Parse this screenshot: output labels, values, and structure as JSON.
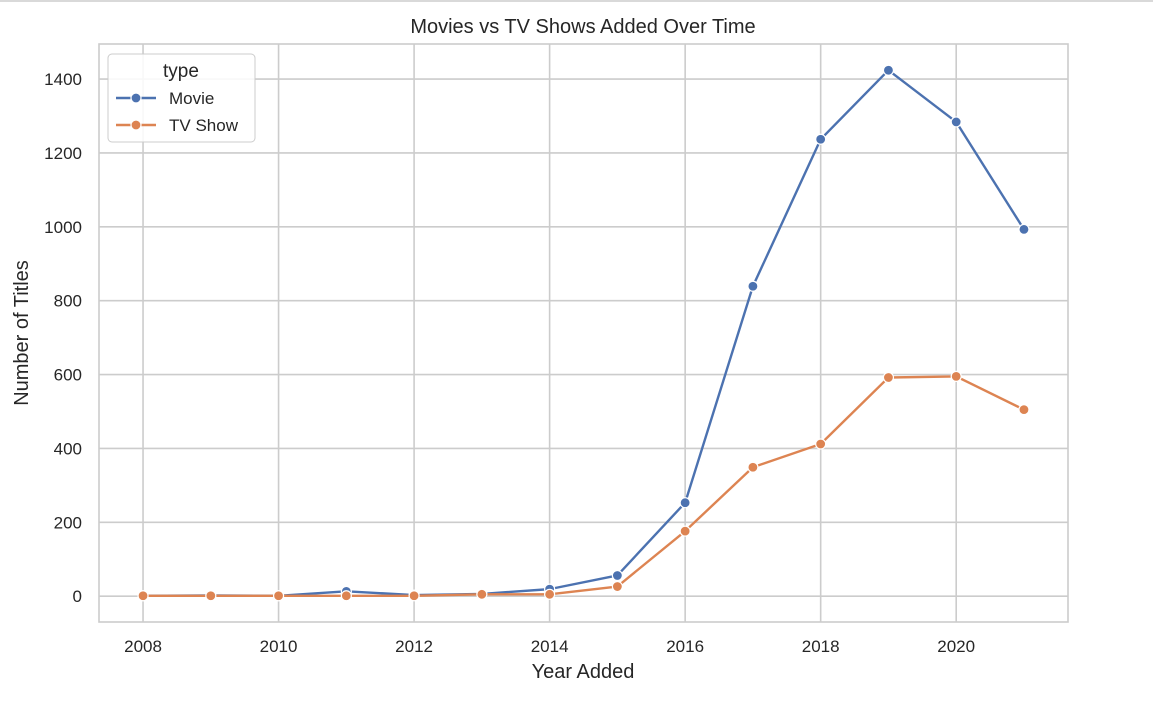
{
  "chart_data": {
    "type": "line",
    "title": "Movies vs TV Shows Added Over Time",
    "xlabel": "Year Added",
    "ylabel": "Number of Titles",
    "x": [
      2008,
      2009,
      2010,
      2011,
      2012,
      2013,
      2014,
      2015,
      2016,
      2017,
      2018,
      2019,
      2020,
      2021
    ],
    "xlim": [
      2007.35,
      2021.65
    ],
    "ylim": [
      -70,
      1495
    ],
    "xticks": [
      2008,
      2010,
      2012,
      2014,
      2016,
      2018,
      2020
    ],
    "yticks": [
      0,
      200,
      400,
      600,
      800,
      1000,
      1200,
      1400
    ],
    "grid": true,
    "legend": {
      "title": "type",
      "placement": "top-left"
    },
    "series": [
      {
        "name": "Movie",
        "color": "#4c72b0",
        "values": [
          1,
          2,
          1,
          13,
          3,
          6,
          19,
          56,
          253,
          839,
          1237,
          1424,
          1284,
          993
        ]
      },
      {
        "name": "TV Show",
        "color": "#dd8452",
        "values": [
          1,
          1,
          1,
          1,
          1,
          5,
          5,
          26,
          176,
          349,
          412,
          592,
          595,
          505
        ]
      }
    ]
  }
}
